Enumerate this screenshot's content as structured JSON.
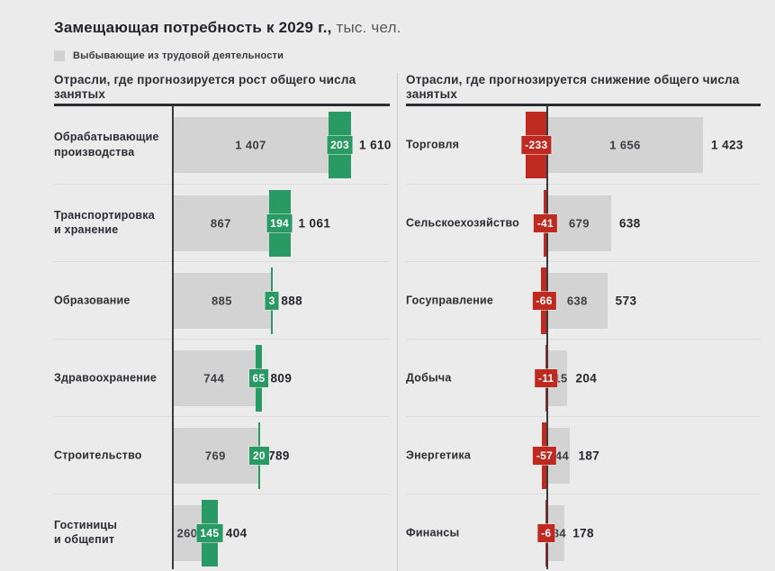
{
  "title": {
    "bold": "Замещающая потребность к 2029 г.,",
    "light": " тыс. чел."
  },
  "legend": {
    "label": "Выбывающие из трудовой деятельности"
  },
  "colors": {
    "background": "#ebebeb",
    "bar_gray": "#d3d3d3",
    "growth_green": "#2a9a64",
    "decline_red": "#bf2a20",
    "axis": "#3a3a3e"
  },
  "chart_data": {
    "type": "bar",
    "title": "Замещающая потребность к 2029 г., тыс. чел.",
    "legend": [
      "Выбывающие из трудовой деятельности"
    ],
    "layout_hint": "two horizontal diverging-bar panels, zero axis per panel, gray = leaving workforce, colored = forecast change, bold = total",
    "panels": [
      {
        "heading": "Отрасли, где прогнозируется рост общего числа занятых",
        "change_kind": "growth",
        "rows": [
          {
            "label": "Обрабатывающие\nпроизводства",
            "leaving": 1407,
            "change": 203,
            "total": 1610,
            "leaving_label": "1 407",
            "change_label": "203",
            "total_label": "1 610"
          },
          {
            "label": "Транспортировка\nи хранение",
            "leaving": 867,
            "change": 194,
            "total": 1061,
            "leaving_label": "867",
            "change_label": "194",
            "total_label": "1 061"
          },
          {
            "label": "Образование",
            "leaving": 885,
            "change": 3,
            "total": 888,
            "leaving_label": "885",
            "change_label": "3",
            "total_label": "888"
          },
          {
            "label": "Здравоохранение",
            "leaving": 744,
            "change": 65,
            "total": 809,
            "leaving_label": "744",
            "change_label": "65",
            "total_label": "809"
          },
          {
            "label": "Строительство",
            "leaving": 769,
            "change": 20,
            "total": 789,
            "leaving_label": "769",
            "change_label": "20",
            "total_label": "789"
          },
          {
            "label": "Гостиницы\nи общепит",
            "leaving": 260,
            "change": 145,
            "total": 404,
            "leaving_label": "260",
            "change_label": "145",
            "total_label": "404"
          }
        ]
      },
      {
        "heading": "Отрасли, где прогнозируется снижение общего числа занятых",
        "change_kind": "decline",
        "rows": [
          {
            "label": "Торговля",
            "leaving": 1656,
            "change": -233,
            "total": 1423,
            "leaving_label": "1 656",
            "change_label": "-233",
            "total_label": "1 423"
          },
          {
            "label": "Сельскоехозяйство",
            "leaving": 679,
            "change": -41,
            "total": 638,
            "leaving_label": "679",
            "change_label": "-41",
            "total_label": "638"
          },
          {
            "label": "Госуправление",
            "leaving": 638,
            "change": -66,
            "total": 573,
            "leaving_label": "638",
            "change_label": "-66",
            "total_label": "573"
          },
          {
            "label": "Добыча",
            "leaving": 215,
            "change": -11,
            "total": 204,
            "leaving_label": "215",
            "change_label": "-11",
            "total_label": "204"
          },
          {
            "label": "Энергетика",
            "leaving": 244,
            "change": -57,
            "total": 187,
            "leaving_label": "244",
            "change_label": "-57",
            "total_label": "187"
          },
          {
            "label": "Финансы",
            "leaving": 184,
            "change": -6,
            "total": 178,
            "leaving_label": "184",
            "change_label": "-6",
            "total_label": "178"
          }
        ]
      }
    ]
  }
}
